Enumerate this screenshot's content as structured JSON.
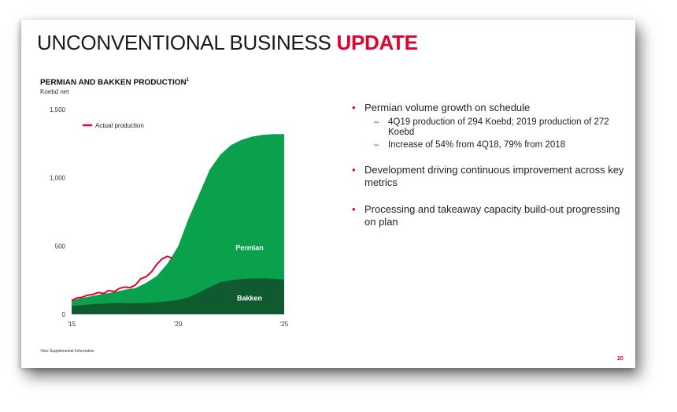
{
  "slide": {
    "title_main": "UNCONVENTIONAL BUSINESS ",
    "title_accent": "UPDATE",
    "chart_title": "PERMIAN AND BAKKEN PRODUCTION",
    "chart_title_sup": "1",
    "chart_unit": "Koebd net",
    "footnote": "¹See Supplemental Information",
    "page_number": "20",
    "colors": {
      "accent": "#e4002b",
      "permian": "#0aa14c",
      "bakken": "#0f5b2f"
    }
  },
  "bullets": [
    {
      "text": "Permian volume growth on schedule",
      "sub": [
        "4Q19 production of 294 Koebd; 2019 production of 272 Koebd",
        "Increase of 54% from 4Q18, 79% from 2018"
      ]
    },
    {
      "text": "Development driving continuous improvement across key metrics",
      "sub": []
    },
    {
      "text": "Processing and takeaway capacity build-out progressing on plan",
      "sub": []
    }
  ],
  "chart_data": {
    "type": "area",
    "title": "PERMIAN AND BAKKEN PRODUCTION",
    "ylabel": "Koebd net",
    "ylim": [
      0,
      1500
    ],
    "xlim": [
      2015,
      2025
    ],
    "y_ticks": [
      {
        "value": 0,
        "label": "0"
      },
      {
        "value": 500,
        "label": "500"
      },
      {
        "value": 1000,
        "label": "1,000"
      },
      {
        "value": 1500,
        "label": "1,500"
      }
    ],
    "x_ticks": [
      {
        "value": 2015,
        "label": "'15"
      },
      {
        "value": 2020,
        "label": "'20"
      },
      {
        "value": 2025,
        "label": "'25"
      }
    ],
    "stacked": true,
    "x": [
      2015,
      2015.5,
      2016,
      2016.5,
      2017,
      2017.5,
      2018,
      2018.5,
      2019,
      2019.5,
      2020,
      2020.5,
      2021,
      2021.5,
      2022,
      2022.5,
      2023,
      2023.5,
      2024,
      2024.5,
      2025
    ],
    "series": [
      {
        "name": "Bakken",
        "values": [
          60,
          68,
          75,
          78,
          82,
          82,
          82,
          84,
          88,
          95,
          105,
          125,
          160,
          200,
          235,
          250,
          258,
          262,
          264,
          260,
          255
        ]
      },
      {
        "name": "Permian",
        "values": [
          40,
          52,
          60,
          72,
          80,
          98,
          110,
          146,
          192,
          275,
          390,
          575,
          720,
          860,
          935,
          990,
          1020,
          1040,
          1051,
          1060,
          1065
        ]
      }
    ],
    "series_labels": [
      "Permian",
      "Bakken"
    ],
    "lines": [
      {
        "name": "Actual production",
        "x": [
          2015,
          2015.25,
          2015.5,
          2015.75,
          2016,
          2016.25,
          2016.5,
          2016.75,
          2017,
          2017.25,
          2017.5,
          2017.75,
          2018,
          2018.25,
          2018.5,
          2018.75,
          2019,
          2019.25,
          2019.5,
          2019.75
        ],
        "values": [
          100,
          120,
          125,
          140,
          145,
          160,
          152,
          175,
          165,
          190,
          200,
          195,
          215,
          260,
          275,
          310,
          365,
          405,
          425,
          410
        ]
      }
    ],
    "legend": [
      "Actual production"
    ],
    "legend_position": "top-left"
  }
}
